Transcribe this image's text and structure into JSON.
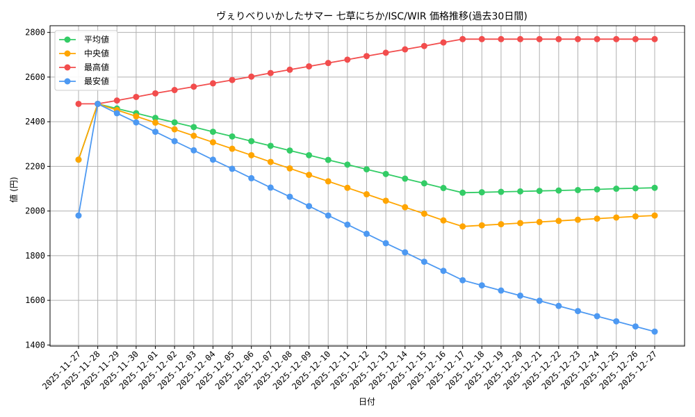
{
  "chart_data": {
    "type": "line",
    "title": "ヴぇりべりいかしたサマー 七草にちか/ISC/WIR 価格推移(過去30日間)",
    "xlabel": "日付",
    "ylabel": "値 (円)",
    "ylim": [
      1395,
      2830
    ],
    "yticks": [
      1400,
      1600,
      1800,
      2000,
      2200,
      2400,
      2600,
      2800
    ],
    "grid": true,
    "legend_position": "top-left",
    "categories": [
      "2025-11-27",
      "2025-11-28",
      "2025-11-29",
      "2025-11-30",
      "2025-12-01",
      "2025-12-02",
      "2025-12-03",
      "2025-12-04",
      "2025-12-05",
      "2025-12-06",
      "2025-12-07",
      "2025-12-08",
      "2025-12-09",
      "2025-12-10",
      "2025-12-11",
      "2025-12-12",
      "2025-12-13",
      "2025-12-14",
      "2025-12-15",
      "2025-12-16",
      "2025-12-17",
      "2025-12-18",
      "2025-12-19",
      "2025-12-20",
      "2025-12-21",
      "2025-12-22",
      "2025-12-23",
      "2025-12-24",
      "2025-12-25",
      "2025-12-26",
      "2025-12-27"
    ],
    "series": [
      {
        "name": "平均値",
        "color": "#33cc66",
        "values": [
          2230,
          2480,
          2459,
          2438,
          2417,
          2397,
          2376,
          2355,
          2334,
          2313,
          2292,
          2271,
          2250,
          2229,
          2208,
          2187,
          2166,
          2145,
          2124,
          2103,
          2082,
          2084,
          2086,
          2088,
          2090,
          2092,
          2094,
          2097,
          2100,
          2102,
          2104
        ]
      },
      {
        "name": "中央値",
        "color": "#ffa500",
        "values": [
          2230,
          2480,
          2452,
          2424,
          2396,
          2366,
          2337,
          2308,
          2279,
          2250,
          2220,
          2191,
          2162,
          2133,
          2104,
          2075,
          2046,
          2017,
          1988,
          1958,
          1931,
          1936,
          1941,
          1946,
          1951,
          1956,
          1961,
          1966,
          1971,
          1976,
          1980
        ]
      },
      {
        "name": "最高値",
        "color": "#f24d4d",
        "values": [
          2480,
          2480,
          2495,
          2511,
          2527,
          2542,
          2557,
          2572,
          2587,
          2602,
          2618,
          2633,
          2648,
          2663,
          2678,
          2694,
          2709,
          2724,
          2739,
          2755,
          2770,
          2770,
          2770,
          2770,
          2770,
          2770,
          2770,
          2770,
          2770,
          2770,
          2770
        ]
      },
      {
        "name": "最安値",
        "color": "#4d99f2",
        "values": [
          1980,
          2480,
          2438,
          2397,
          2355,
          2313,
          2272,
          2230,
          2189,
          2147,
          2105,
          2064,
          2022,
          1980,
          1939,
          1898,
          1856,
          1815,
          1773,
          1732,
          1690,
          1667,
          1644,
          1621,
          1598,
          1575,
          1552,
          1529,
          1506,
          1483,
          1460
        ]
      }
    ]
  }
}
